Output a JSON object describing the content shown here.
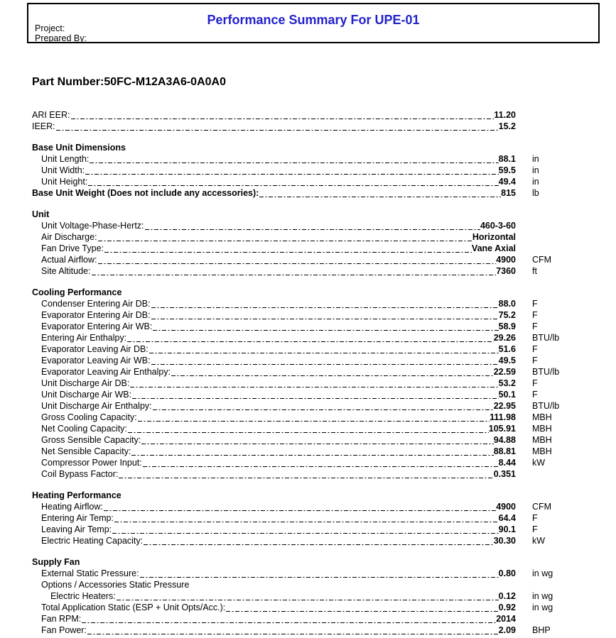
{
  "header": {
    "project_label": "Project:",
    "prepared_by_label": "Prepared By:",
    "title": "Performance Summary For UPE-01",
    "title_color": "#2222CC"
  },
  "part_number": {
    "label": "Part Number:",
    "value": "50FC-M12A3A6-0A0A0"
  },
  "sections": [
    {
      "title": "",
      "rows": [
        {
          "label": "ARI EER:",
          "value": "11.20",
          "unit": "",
          "indent": 0
        },
        {
          "label": "IEER:",
          "value": "15.2",
          "unit": "",
          "indent": 0
        }
      ]
    },
    {
      "title": "Base Unit Dimensions",
      "rows": [
        {
          "label": "Unit Length:",
          "value": "88.1",
          "unit": "in",
          "indent": 1
        },
        {
          "label": "Unit Width:",
          "value": "59.5",
          "unit": "in",
          "indent": 1
        },
        {
          "label": "Unit Height:",
          "value": "49.4",
          "unit": "in",
          "indent": 1
        },
        {
          "label": "Base Unit Weight (Does not include any accessories):",
          "value": "815",
          "unit": "lb",
          "indent": 0,
          "bold": true
        }
      ]
    },
    {
      "title": "Unit",
      "rows": [
        {
          "label": "Unit Voltage-Phase-Hertz:",
          "value": "460-3-60",
          "unit": "",
          "indent": 1
        },
        {
          "label": "Air Discharge:",
          "value": "Horizontal",
          "unit": "",
          "indent": 1
        },
        {
          "label": "Fan Drive Type:",
          "value": "Vane Axial",
          "unit": "",
          "indent": 1
        },
        {
          "label": "Actual Airflow:",
          "value": "4900",
          "unit": "CFM",
          "indent": 1
        },
        {
          "label": "Site Altitude:",
          "value": "7360",
          "unit": "ft",
          "indent": 1
        }
      ]
    },
    {
      "title": "Cooling Performance",
      "rows": [
        {
          "label": "Condenser Entering Air DB:",
          "value": "88.0",
          "unit": "F",
          "indent": 1
        },
        {
          "label": "Evaporator Entering Air DB:",
          "value": "75.2",
          "unit": "F",
          "indent": 1
        },
        {
          "label": "Evaporator Entering Air WB:",
          "value": "58.9",
          "unit": "F",
          "indent": 1
        },
        {
          "label": "Entering Air Enthalpy:",
          "value": "29.26",
          "unit": "BTU/lb",
          "indent": 1
        },
        {
          "label": "Evaporator Leaving Air DB:",
          "value": "51.6",
          "unit": "F",
          "indent": 1
        },
        {
          "label": "Evaporator Leaving Air WB:",
          "value": "49.5",
          "unit": "F",
          "indent": 1
        },
        {
          "label": "Evaporator Leaving Air Enthalpy:",
          "value": "22.59",
          "unit": "BTU/lb",
          "indent": 1
        },
        {
          "label": "Unit Discharge Air DB:",
          "value": "53.2",
          "unit": "F",
          "indent": 1
        },
        {
          "label": "Unit Discharge Air WB:",
          "value": "50.1",
          "unit": "F",
          "indent": 1
        },
        {
          "label": "Unit Discharge Air Enthalpy:",
          "value": "22.95",
          "unit": "BTU/lb",
          "indent": 1
        },
        {
          "label": "Gross Cooling Capacity:",
          "value": "111.98",
          "unit": "MBH",
          "indent": 1
        },
        {
          "label": "Net Cooling Capacity:",
          "value": "105.91",
          "unit": "MBH",
          "indent": 1
        },
        {
          "label": "Gross Sensible Capacity:",
          "value": "94.88",
          "unit": "MBH",
          "indent": 1
        },
        {
          "label": "Net Sensible Capacity:",
          "value": "88.81",
          "unit": "MBH",
          "indent": 1
        },
        {
          "label": "Compressor Power Input:",
          "value": "8.44",
          "unit": "kW",
          "indent": 1
        },
        {
          "label": "Coil Bypass Factor:",
          "value": "0.351",
          "unit": "",
          "indent": 1
        }
      ]
    },
    {
      "title": "Heating Performance",
      "rows": [
        {
          "label": "Heating Airflow:",
          "value": "4900",
          "unit": "CFM",
          "indent": 1
        },
        {
          "label": "Entering Air Temp:",
          "value": "64.4",
          "unit": "F",
          "indent": 1
        },
        {
          "label": "Leaving Air Temp:",
          "value": "90.1",
          "unit": "F",
          "indent": 1
        },
        {
          "label": "Electric Heating Capacity:",
          "value": "30.30",
          "unit": "kW",
          "indent": 1
        }
      ]
    },
    {
      "title": "Supply Fan",
      "rows": [
        {
          "label": "External Static Pressure:",
          "value": "0.80",
          "unit": "in wg",
          "indent": 1
        },
        {
          "label": "Options / Accessories Static Pressure",
          "indent": 1,
          "leader": false
        },
        {
          "label": "Electric Heaters:",
          "value": "0.12",
          "unit": "in wg",
          "indent": 2
        },
        {
          "label": "Total Application Static (ESP + Unit Opts/Acc.):",
          "value": "0.92",
          "unit": "in wg",
          "indent": 1
        },
        {
          "label": "Fan RPM:",
          "value": "2014",
          "unit": "",
          "indent": 1
        },
        {
          "label": "Fan Power:",
          "value": "2.09",
          "unit": "BHP",
          "indent": 1
        }
      ]
    }
  ]
}
